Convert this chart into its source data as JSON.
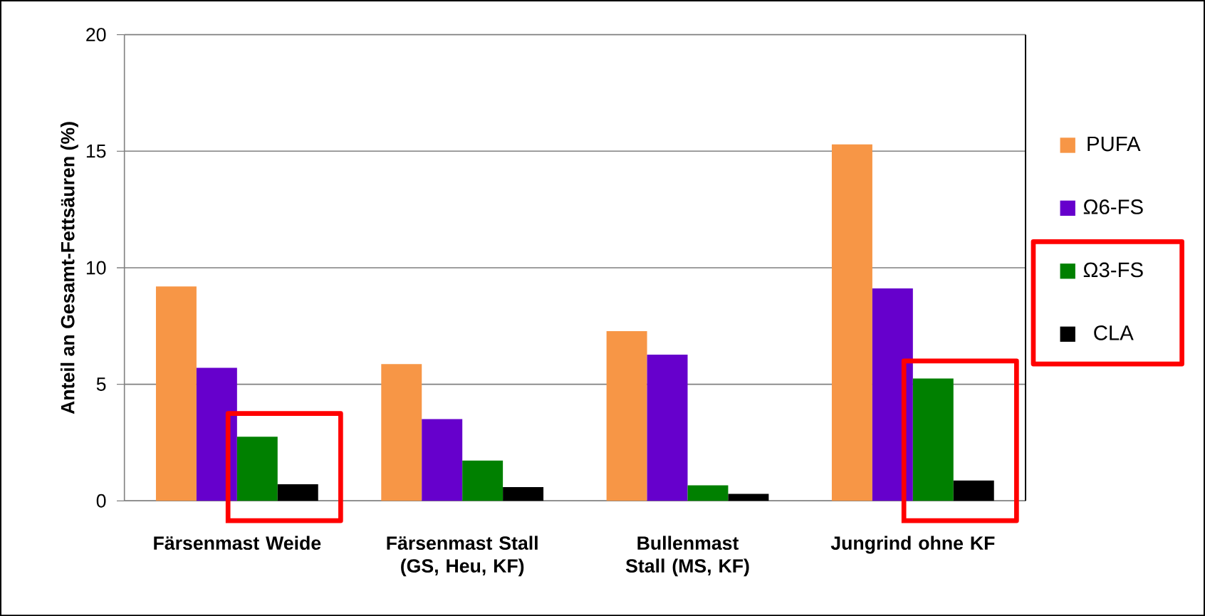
{
  "chart_data": {
    "type": "bar",
    "ylabel": "Anteil an Gesamt-Fettsäuren (%)",
    "categories": [
      "Färsenmast Weide",
      "Färsenmast Stall (GS, Heu, KF)",
      "Bullenmast Stall (MS, KF)",
      "Jungrind ohne KF"
    ],
    "series": [
      {
        "name": "PUFA",
        "color": "#f79646",
        "values": [
          9.2,
          5.87,
          7.28,
          15.29
        ]
      },
      {
        "name": "Ω6-FS",
        "color": "#6600cc",
        "values": [
          5.71,
          3.51,
          6.27,
          9.11
        ]
      },
      {
        "name": "Ω3-FS",
        "color": "#008000",
        "values": [
          2.75,
          1.73,
          0.67,
          5.25
        ]
      },
      {
        "name": "CLA",
        "color": "#000000",
        "values": [
          0.71,
          0.59,
          0.3,
          0.87
        ]
      }
    ],
    "ylim": [
      0,
      20
    ],
    "yticks": [
      0,
      5,
      10,
      15,
      20
    ],
    "grid": "y",
    "legend": "right"
  }
}
